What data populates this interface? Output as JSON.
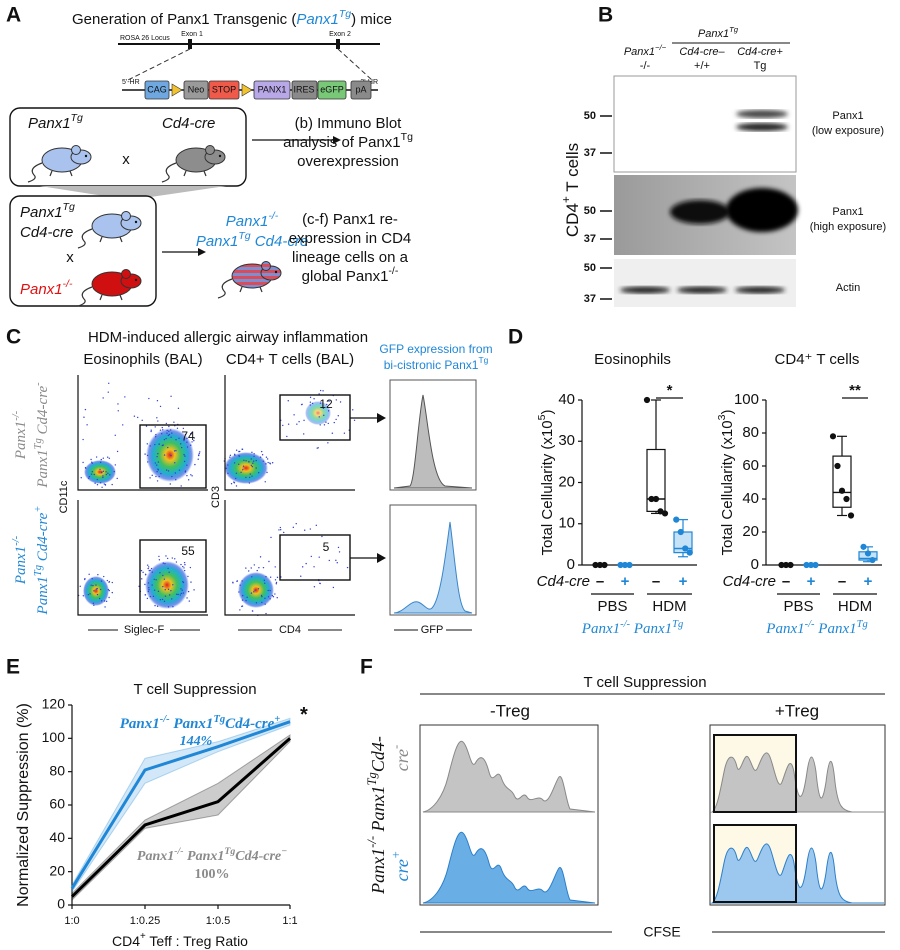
{
  "panel_a": {
    "label": "A",
    "title": [
      "Generation of Panx1 Transgenic (",
      "Panx1",
      "Tg",
      ") mice"
    ],
    "locus": "ROSA 26 Locus",
    "exons": [
      "Exon 1",
      "Exon 2"
    ],
    "arms": [
      "5'-HR",
      "3'-HR"
    ],
    "elements": [
      "CAG",
      "Neo",
      "STOP",
      "PANX1",
      "IRES",
      "eGFP",
      "pA"
    ],
    "cross_1": {
      "parent_1": [
        "Panx1",
        "Tg"
      ],
      "parent_2": "Cd4-cre",
      "symbol": "x"
    },
    "outcome_1": [
      [
        "(b) Immuno Blot"
      ],
      [
        "analysis of Panx1",
        "Tg"
      ],
      [
        "overexpression"
      ]
    ],
    "cross_2": {
      "parent_1": [
        [
          "Panx1",
          "Tg"
        ],
        [
          "Cd4-cre"
        ]
      ],
      "symbol": "x",
      "parent_2": [
        "Panx1",
        "-/-"
      ]
    },
    "offspring": [
      [
        "Panx1",
        "-/-"
      ],
      [
        "Panx1",
        "Tg",
        " Cd4-cre"
      ]
    ],
    "outcome_2": [
      [
        "(c-f) Panx1 re-"
      ],
      [
        "expression in CD4"
      ],
      [
        "lineage cells on a"
      ],
      [
        "global Panx1",
        "-/-"
      ]
    ]
  },
  "panel_b": {
    "label": "B",
    "group": [
      "Panx1",
      "Tg"
    ],
    "columns": [
      {
        "name": [
          "Panx1",
          "−/−"
        ],
        "genotype": "-/-"
      },
      {
        "name": [
          "Cd4-cre–"
        ],
        "genotype": "+/+"
      },
      {
        "name": [
          "Cd4-cre+"
        ],
        "genotype": "Tg"
      }
    ],
    "ylabel": [
      "CD4",
      "+",
      " T cells"
    ],
    "blots": [
      {
        "name": "Panx1",
        "note": "(low exposure)",
        "markers": [
          50,
          37
        ]
      },
      {
        "name": "Panx1",
        "note": "(high exposure)",
        "markers": [
          50,
          37
        ]
      },
      {
        "name": "Actin",
        "markers": [
          50,
          37
        ]
      }
    ]
  },
  "panel_c": {
    "label": "C",
    "title": "HDM-induced allergic airway inflammation",
    "columns": [
      "Eosinophils (BAL)",
      "CD4+ T cells (BAL)"
    ],
    "histogram_title": [
      [
        "GFP expression from"
      ],
      [
        "bi-cistronic Panx1",
        "Tg"
      ]
    ],
    "rows": [
      {
        "name": [
          [
            "Panx1",
            "-/-"
          ],
          [
            "Panx1",
            "Tg",
            " Cd4-cre",
            "-"
          ]
        ],
        "gates": [
          74,
          12
        ]
      },
      {
        "name": [
          [
            "Panx1",
            "-/-"
          ],
          [
            "Panx1",
            "Tg",
            " Cd4-cre",
            "+"
          ]
        ],
        "gates": [
          55,
          5
        ]
      }
    ],
    "axes": {
      "eos_y": "CD11c",
      "eos_x": "Siglec-F",
      "cd4_y": "CD3",
      "cd4_x": "CD4",
      "histogram_x": "GFP"
    }
  },
  "panel_d": {
    "label": "D",
    "x_row_label": "Cd4-cre",
    "groups": [
      "PBS",
      "HDM"
    ],
    "genotype": [
      "Panx1",
      "-/-",
      " Panx1",
      "Tg"
    ],
    "charts": [
      {
        "type": "box",
        "title": "Eosinophils",
        "ylabel": [
          "Total Cellularity (x10",
          "5",
          ")"
        ],
        "categories": [
          "–",
          "+",
          "–",
          "+"
        ],
        "ylim": [
          0,
          40
        ],
        "yticks": [
          0,
          10,
          20,
          30,
          40
        ],
        "boxes": [
          {
            "color": "#111111",
            "points": [
              0,
              0,
              0
            ]
          },
          {
            "color": "#1f87d6",
            "points": [
              0,
              0,
              0
            ]
          },
          {
            "color": "#111111",
            "fill": "#ffffff",
            "min": 12.5,
            "q1": 13,
            "median": 16,
            "q3": 28,
            "max": 40,
            "points": [
              40,
              16,
              16,
              13,
              12.5
            ]
          },
          {
            "color": "#1f87d6",
            "fill": "#c6e2f7",
            "min": 2,
            "q1": 3,
            "median": 4,
            "q3": 8,
            "max": 11,
            "points": [
              11,
              8,
              4,
              3
            ]
          }
        ],
        "significance": "*"
      },
      {
        "type": "box",
        "title": "CD4⁺ T cells",
        "ylabel": [
          "Total Cellularity (x10",
          "3",
          ")"
        ],
        "categories": [
          "–",
          "+",
          "–",
          "+"
        ],
        "ylim": [
          0,
          100
        ],
        "yticks": [
          0,
          20,
          40,
          60,
          80,
          100
        ],
        "boxes": [
          {
            "color": "#111111",
            "points": [
              0,
              0,
              0
            ]
          },
          {
            "color": "#1f87d6",
            "points": [
              0,
              0,
              0
            ]
          },
          {
            "color": "#111111",
            "fill": "#ffffff",
            "min": 30,
            "q1": 35,
            "median": 44,
            "q3": 66,
            "max": 78,
            "points": [
              78,
              60,
              45,
              40,
              30
            ]
          },
          {
            "color": "#1f87d6",
            "fill": "#c6e2f7",
            "min": 2,
            "q1": 3,
            "median": 4,
            "q3": 8,
            "max": 11,
            "points": [
              11,
              7,
              3
            ]
          }
        ],
        "significance": "**"
      }
    ]
  },
  "panel_e": {
    "label": "E",
    "chart_data": {
      "type": "line",
      "title": "T cell Suppression",
      "ylabel": "Normalized Suppression (%)",
      "xlabel": [
        "CD4",
        "+",
        " Teff : Treg Ratio"
      ],
      "categories": [
        "1:0",
        "1:0.25",
        "1:0.5",
        "1:1"
      ],
      "ylim": [
        0,
        120
      ],
      "yticks": [
        0,
        20,
        40,
        60,
        80,
        100,
        120
      ],
      "series": [
        {
          "name": [
            "Panx1",
            "-/-",
            " Panx1",
            "Tg",
            "Cd4-cre",
            "+"
          ],
          "label": "144%",
          "color": "#1f87d6",
          "values": [
            10,
            81,
            95,
            110
          ],
          "lower": [
            8,
            73,
            92,
            108
          ],
          "upper": [
            12,
            88,
            98,
            112
          ]
        },
        {
          "name": [
            "Panx1",
            "-/-",
            " Panx1",
            "Tg",
            "Cd4-cre",
            "−"
          ],
          "label": "100%",
          "color": "#000000",
          "values": [
            5,
            48,
            62,
            100
          ],
          "lower": [
            3,
            46,
            54,
            98
          ],
          "upper": [
            7,
            51,
            73,
            102
          ]
        }
      ],
      "significance": "*"
    }
  },
  "panel_f": {
    "label": "F",
    "title": "T cell Suppression",
    "columns": [
      "-Treg",
      "+Treg"
    ],
    "row_label": [
      "Panx1",
      "-/-",
      " Panx1",
      "Tg",
      "Cd4-"
    ],
    "rows": [
      [
        "cre",
        "-"
      ],
      [
        "cre",
        "+"
      ]
    ],
    "x_label": "CFSE"
  }
}
